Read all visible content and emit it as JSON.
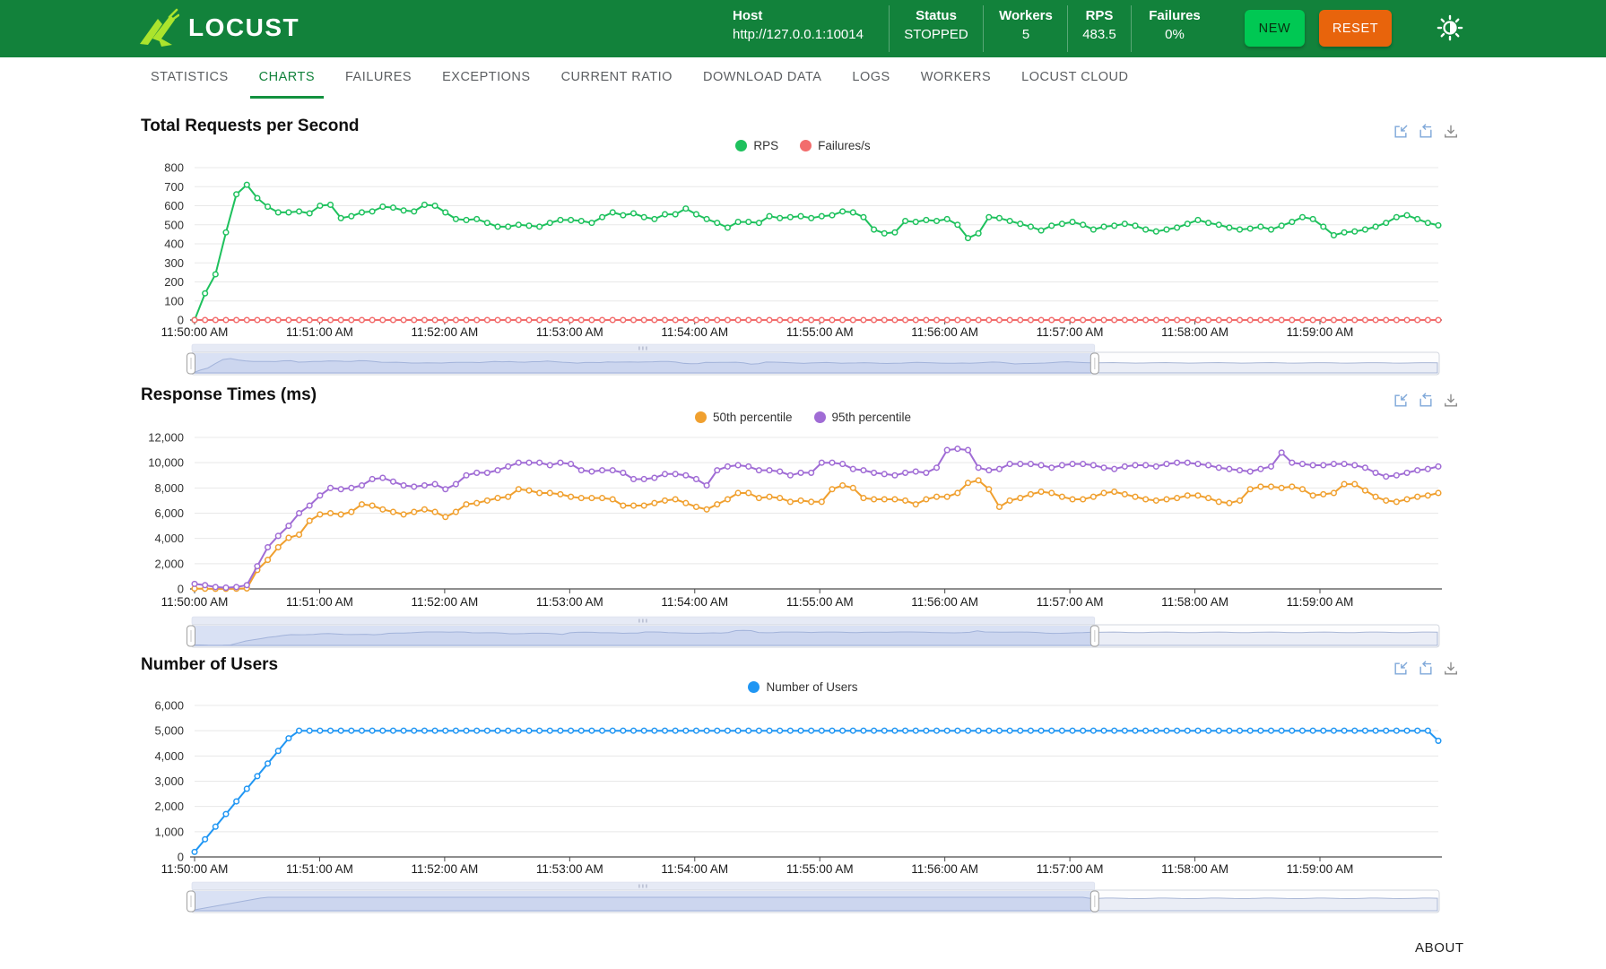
{
  "header": {
    "brand": "LOCUST",
    "host_label": "Host",
    "host_value": "http://127.0.0.1:10014",
    "status_label": "Status",
    "status_value": "STOPPED",
    "workers_label": "Workers",
    "workers_value": "5",
    "rps_label": "RPS",
    "rps_value": "483.5",
    "failures_label": "Failures",
    "failures_value": "0%",
    "new_button": "NEW",
    "reset_button": "RESET"
  },
  "tabs": {
    "items": [
      "STATISTICS",
      "CHARTS",
      "FAILURES",
      "EXCEPTIONS",
      "CURRENT RATIO",
      "DOWNLOAD DATA",
      "LOGS",
      "WORKERS",
      "LOCUST CLOUD"
    ],
    "active": "CHARTS"
  },
  "colors": {
    "header_bg": "#12823B",
    "accent_green": "#12913F",
    "new_button_bg": "#00C853",
    "reset_button_bg": "#E8640C",
    "rps_line": "#1EC15D",
    "failures_line": "#F26D6D",
    "p50_line": "#F0A02F",
    "p95_line": "#A06CD5",
    "users_line": "#2096F3",
    "toolbox_blue": "#7FA8D9",
    "toolbox_gray": "#8C8C8C"
  },
  "chart_data": [
    {
      "type": "line",
      "title": "Total Requests per Second",
      "x_ticks": [
        "11:50:00 AM",
        "11:51:00 AM",
        "11:52:00 AM",
        "11:53:00 AM",
        "11:54:00 AM",
        "11:55:00 AM",
        "11:56:00 AM",
        "11:57:00 AM",
        "11:58:00 AM",
        "11:59:00 AM"
      ],
      "ylim": [
        0,
        800
      ],
      "ystep": 100,
      "grid": true,
      "legend_position": "top-center",
      "zoom_selected_fraction": 0.724,
      "series": [
        {
          "name": "RPS",
          "color": "#1EC15D",
          "values": [
            0,
            140,
            240,
            460,
            660,
            710,
            640,
            595,
            565,
            565,
            570,
            560,
            600,
            605,
            535,
            545,
            565,
            570,
            595,
            590,
            575,
            570,
            605,
            600,
            565,
            530,
            525,
            530,
            510,
            490,
            490,
            500,
            495,
            490,
            510,
            525,
            525,
            520,
            510,
            540,
            565,
            550,
            560,
            540,
            530,
            555,
            555,
            585,
            555,
            530,
            510,
            485,
            515,
            515,
            510,
            545,
            535,
            540,
            545,
            535,
            545,
            550,
            570,
            565,
            540,
            475,
            455,
            460,
            520,
            515,
            525,
            520,
            530,
            500,
            430,
            455,
            540,
            535,
            520,
            505,
            490,
            470,
            495,
            505,
            515,
            500,
            475,
            490,
            495,
            505,
            495,
            475,
            465,
            475,
            485,
            505,
            525,
            510,
            500,
            485,
            475,
            480,
            490,
            475,
            495,
            515,
            540,
            530,
            490,
            445,
            460,
            465,
            475,
            490,
            510,
            540,
            550,
            530,
            510,
            497
          ]
        },
        {
          "name": "Failures/s",
          "color": "#F26D6D",
          "values": [
            0,
            0,
            0,
            0,
            0,
            0,
            0,
            0,
            0,
            0,
            0,
            0,
            0,
            0,
            0,
            0,
            0,
            0,
            0,
            0,
            0,
            0,
            0,
            0,
            0,
            0,
            0,
            0,
            0,
            0,
            0,
            0,
            0,
            0,
            0,
            0,
            0,
            0,
            0,
            0,
            0,
            0,
            0,
            0,
            0,
            0,
            0,
            0,
            0,
            0,
            0,
            0,
            0,
            0,
            0,
            0,
            0,
            0,
            0,
            0,
            0,
            0,
            0,
            0,
            0,
            0,
            0,
            0,
            0,
            0,
            0,
            0,
            0,
            0,
            0,
            0,
            0,
            0,
            0,
            0,
            0,
            0,
            0,
            0,
            0,
            0,
            0,
            0,
            0,
            0,
            0,
            0,
            0,
            0,
            0,
            0,
            0,
            0,
            0,
            0,
            0,
            0,
            0,
            0,
            0,
            0,
            0,
            0,
            0,
            0,
            0,
            0,
            0,
            0,
            0,
            0,
            0,
            0,
            0,
            0
          ]
        }
      ]
    },
    {
      "type": "line",
      "title": "Response Times (ms)",
      "x_ticks": [
        "11:50:00 AM",
        "11:51:00 AM",
        "11:52:00 AM",
        "11:53:00 AM",
        "11:54:00 AM",
        "11:55:00 AM",
        "11:56:00 AM",
        "11:57:00 AM",
        "11:58:00 AM",
        "11:59:00 AM"
      ],
      "ylim": [
        0,
        12000
      ],
      "ystep": 2000,
      "grid": true,
      "legend_position": "top-center",
      "zoom_selected_fraction": 0.724,
      "series": [
        {
          "name": "50th percentile",
          "color": "#F0A02F",
          "values": [
            30,
            20,
            10,
            10,
            20,
            40,
            1500,
            2300,
            3300,
            4050,
            4300,
            5400,
            5900,
            6000,
            5900,
            6100,
            6700,
            6600,
            6300,
            6100,
            5900,
            6100,
            6300,
            6100,
            5700,
            6100,
            6700,
            6800,
            7000,
            7200,
            7300,
            7900,
            7800,
            7600,
            7600,
            7500,
            7300,
            7200,
            7200,
            7200,
            7100,
            6600,
            6600,
            6600,
            6800,
            7000,
            7100,
            6800,
            6500,
            6300,
            6700,
            7100,
            7600,
            7600,
            7200,
            7300,
            7200,
            6900,
            7000,
            6900,
            6900,
            7900,
            8200,
            8000,
            7200,
            7100,
            7100,
            7100,
            7000,
            6700,
            7100,
            7300,
            7300,
            7600,
            8400,
            8600,
            7900,
            6500,
            7000,
            7200,
            7500,
            7700,
            7600,
            7300,
            7100,
            7100,
            7300,
            7600,
            7700,
            7500,
            7300,
            7100,
            7000,
            7100,
            7200,
            7400,
            7400,
            7200,
            6900,
            6800,
            7000,
            7900,
            8100,
            8100,
            8000,
            8100,
            7900,
            7400,
            7500,
            7600,
            8300,
            8300,
            7800,
            7300,
            7000,
            6900,
            7100,
            7300,
            7400,
            7600
          ]
        },
        {
          "name": "95th percentile",
          "color": "#A06CD5",
          "values": [
            400,
            300,
            150,
            100,
            150,
            300,
            1800,
            3300,
            4200,
            5000,
            6000,
            6600,
            7400,
            8000,
            7900,
            8000,
            8200,
            8700,
            8800,
            8500,
            8200,
            8100,
            8200,
            8300,
            7900,
            8300,
            9000,
            9200,
            9200,
            9400,
            9700,
            10000,
            10000,
            10000,
            9800,
            10000,
            9900,
            9400,
            9300,
            9400,
            9400,
            9200,
            8700,
            8700,
            8800,
            9100,
            9100,
            9000,
            8700,
            8200,
            9400,
            9700,
            9800,
            9700,
            9400,
            9400,
            9300,
            9000,
            9200,
            9200,
            10000,
            10000,
            9900,
            9500,
            9400,
            9200,
            9100,
            9000,
            9200,
            9300,
            9200,
            9600,
            11000,
            11100,
            11000,
            9600,
            9400,
            9500,
            9900,
            9900,
            9900,
            9800,
            9600,
            9800,
            9900,
            9900,
            9800,
            9600,
            9500,
            9700,
            9800,
            9800,
            9700,
            9900,
            10000,
            10000,
            9900,
            9800,
            9600,
            9500,
            9400,
            9300,
            9500,
            9700,
            10800,
            10000,
            9900,
            9800,
            9800,
            9900,
            9900,
            9800,
            9600,
            9200,
            8900,
            9000,
            9200,
            9400,
            9500,
            9700
          ]
        }
      ]
    },
    {
      "type": "line",
      "title": "Number of Users",
      "x_ticks": [
        "11:50:00 AM",
        "11:51:00 AM",
        "11:52:00 AM",
        "11:53:00 AM",
        "11:54:00 AM",
        "11:55:00 AM",
        "11:56:00 AM",
        "11:57:00 AM",
        "11:58:00 AM",
        "11:59:00 AM"
      ],
      "ylim": [
        0,
        6000
      ],
      "ystep": 1000,
      "grid": true,
      "legend_position": "top-center",
      "zoom_selected_fraction": 0.724,
      "series": [
        {
          "name": "Number of Users",
          "color": "#2096F3",
          "values": [
            200,
            700,
            1200,
            1700,
            2200,
            2700,
            3200,
            3700,
            4200,
            4700,
            5000,
            5000,
            5000,
            5000,
            5000,
            5000,
            5000,
            5000,
            5000,
            5000,
            5000,
            5000,
            5000,
            5000,
            5000,
            5000,
            5000,
            5000,
            5000,
            5000,
            5000,
            5000,
            5000,
            5000,
            5000,
            5000,
            5000,
            5000,
            5000,
            5000,
            5000,
            5000,
            5000,
            5000,
            5000,
            5000,
            5000,
            5000,
            5000,
            5000,
            5000,
            5000,
            5000,
            5000,
            5000,
            5000,
            5000,
            5000,
            5000,
            5000,
            5000,
            5000,
            5000,
            5000,
            5000,
            5000,
            5000,
            5000,
            5000,
            5000,
            5000,
            5000,
            5000,
            5000,
            5000,
            5000,
            5000,
            5000,
            5000,
            5000,
            5000,
            5000,
            5000,
            5000,
            5000,
            5000,
            5000,
            5000,
            5000,
            5000,
            5000,
            5000,
            5000,
            5000,
            5000,
            5000,
            5000,
            5000,
            5000,
            5000,
            5000,
            5000,
            5000,
            5000,
            5000,
            5000,
            5000,
            5000,
            5000,
            5000,
            5000,
            5000,
            5000,
            5000,
            5000,
            5000,
            5000,
            5000,
            5000,
            4600
          ]
        }
      ]
    }
  ],
  "footer": {
    "about_label": "ABOUT"
  }
}
